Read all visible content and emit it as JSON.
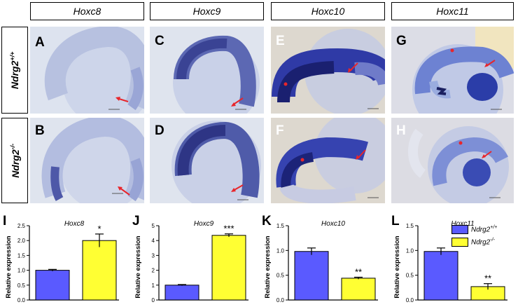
{
  "genes": [
    "Hoxc8",
    "Hoxc9",
    "Hoxc10",
    "Hoxc11"
  ],
  "genotypes": {
    "wt": {
      "base": "Ndrg2",
      "sup": "+/+"
    },
    "ko": {
      "base": "Ndrg2",
      "sup": "-/-"
    }
  },
  "panels": [
    {
      "letter": "A"
    },
    {
      "letter": "B"
    },
    {
      "letter": "C"
    },
    {
      "letter": "D"
    },
    {
      "letter": "E"
    },
    {
      "letter": "F"
    },
    {
      "letter": "G"
    },
    {
      "letter": "H"
    }
  ],
  "colors": {
    "wt_bar": "#5a5aff",
    "ko_bar": "#ffff33",
    "arrow": "#e8252b",
    "stain_dark": "#2b2d8a",
    "stain_light": "#c6cde6"
  },
  "chart_ylabel": "Relative expression",
  "chart_data": [
    {
      "type": "bar",
      "panel": "I",
      "title": "Hoxc8",
      "categories": [
        "Ndrg2+/+",
        "Ndrg2-/-"
      ],
      "values": [
        1.0,
        2.0
      ],
      "errors": [
        0.03,
        0.22
      ],
      "ylabel": "Relative expression",
      "ylim": [
        0,
        2.5
      ],
      "yticks": [
        "0.0",
        "0.5",
        "1.0",
        "1.5",
        "2.0",
        "2.5"
      ],
      "significance": "*"
    },
    {
      "type": "bar",
      "panel": "J",
      "title": "Hoxc9",
      "categories": [
        "Ndrg2+/+",
        "Ndrg2-/-"
      ],
      "values": [
        1.0,
        4.35
      ],
      "errors": [
        0.04,
        0.1
      ],
      "ylabel": "Relative expression",
      "ylim": [
        0,
        5
      ],
      "yticks": [
        "0",
        "1",
        "2",
        "3",
        "4",
        "5"
      ],
      "significance": "***"
    },
    {
      "type": "bar",
      "panel": "K",
      "title": "Hoxc10",
      "categories": [
        "Ndrg2+/+",
        "Ndrg2-/-"
      ],
      "values": [
        0.98,
        0.44
      ],
      "errors": [
        0.07,
        0.02
      ],
      "ylabel": "Relative expression",
      "ylim": [
        0,
        1.5
      ],
      "yticks": [
        "0.0",
        "0.5",
        "1.0",
        "1.5"
      ],
      "significance": "**"
    },
    {
      "type": "bar",
      "panel": "L",
      "title": "Hoxc11",
      "categories": [
        "Ndrg2+/+",
        "Ndrg2-/-"
      ],
      "values": [
        0.98,
        0.27
      ],
      "errors": [
        0.07,
        0.06
      ],
      "ylabel": "Relative expression",
      "ylim": [
        0,
        1.5
      ],
      "yticks": [
        "0.0",
        "0.5",
        "1.0",
        "1.5"
      ],
      "significance": "**"
    }
  ]
}
